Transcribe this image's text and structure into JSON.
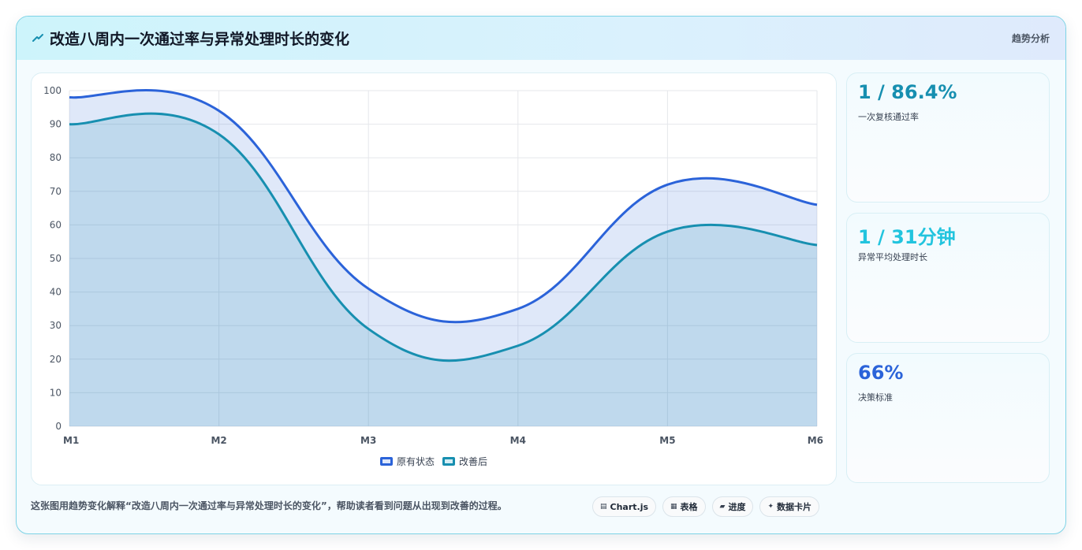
{
  "title": "改造八周内一次通过率与异常处理时长的变化",
  "header_tag": "趋势分析",
  "chart_data": {
    "type": "area",
    "categories": [
      "M1",
      "M2",
      "M3",
      "M4",
      "M5",
      "M6"
    ],
    "series": [
      {
        "name": "原有状态",
        "values": [
          98,
          94,
          41,
          35,
          72,
          66
        ],
        "color": "#2b63d9"
      },
      {
        "name": "改善后",
        "values": [
          90,
          87,
          29,
          24,
          58,
          54
        ],
        "color": "#178fb0"
      }
    ],
    "ylim": [
      0,
      100
    ],
    "yticks": [
      0,
      10,
      20,
      30,
      40,
      50,
      60,
      70,
      80,
      90,
      100
    ],
    "grid": true,
    "legend_position": "bottom"
  },
  "legend": {
    "items": [
      "原有状态",
      "改善后"
    ]
  },
  "kpis": [
    {
      "value": "1 / 86.4%",
      "label": "一次复核通过率",
      "color": "#178fb0"
    },
    {
      "value": "1 / 31分钟",
      "label": "异常平均处理时长",
      "color": "#22c4de"
    },
    {
      "value": "66%",
      "label": "决策标准",
      "color": "#2b63d9"
    }
  ],
  "footer": {
    "description": "这张图用趋势变化解释“改造八周内一次通过率与异常处理时长的变化”，帮助读者看到问题从出现到改善的过程。",
    "chips": [
      {
        "icon": "chart-icon",
        "label": "Chart.js"
      },
      {
        "icon": "table-icon",
        "label": "表格"
      },
      {
        "icon": "progress-icon",
        "label": "进度"
      },
      {
        "icon": "sparkle-icon",
        "label": "数据卡片"
      }
    ]
  }
}
